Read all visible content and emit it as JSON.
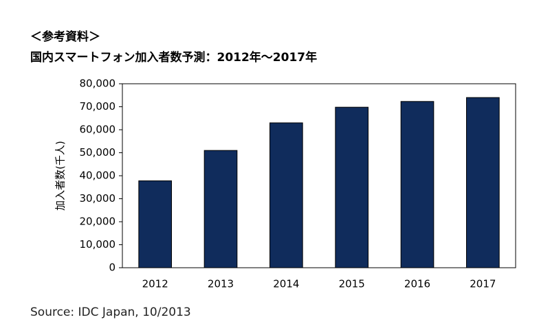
{
  "chart_data": {
    "type": "bar",
    "heading": "＜参考資料＞",
    "title": "国内スマートフォン加入者数予測：2012年～2017年",
    "y_label": "加入者数(千人)",
    "source": "Source: IDC Japan, 10/2013",
    "categories": [
      "2012",
      "2013",
      "2014",
      "2015",
      "2016",
      "2017"
    ],
    "values": [
      37800,
      51000,
      63000,
      69800,
      72300,
      74000
    ],
    "color": "#102c5c",
    "ylim": [
      0,
      80000
    ],
    "yticks": [
      0,
      {
        "value": 10000,
        "label": "10,000"
      },
      {
        "value": 20000,
        "label": "20,000"
      },
      {
        "value": 30000,
        "label": "30,000"
      },
      {
        "value": 40000,
        "label": "40,000"
      },
      {
        "value": 50000,
        "label": "50,000"
      },
      {
        "value": 60000,
        "label": "60,000"
      },
      {
        "value": 70000,
        "label": "70,000"
      },
      {
        "value": 80000,
        "label": "80,000"
      }
    ],
    "grid": false
  }
}
